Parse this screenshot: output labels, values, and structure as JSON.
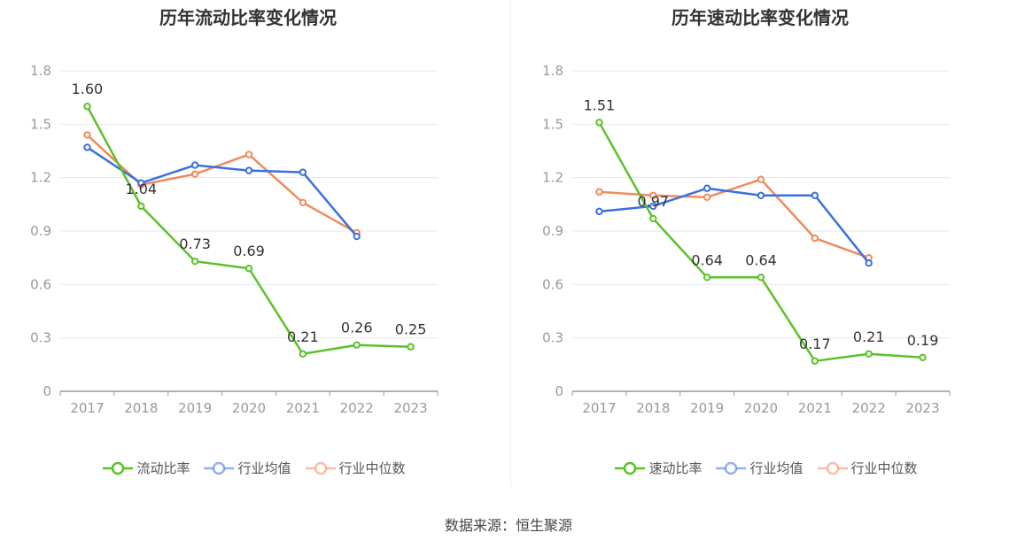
{
  "chart_data": [
    {
      "type": "line",
      "title": "历年流动比率变化情况",
      "categories": [
        "2017",
        "2018",
        "2019",
        "2020",
        "2021",
        "2022",
        "2023"
      ],
      "yticks": [
        "0",
        "0.3",
        "0.6",
        "0.9",
        "1.2",
        "1.5",
        "1.8"
      ],
      "ylim": [
        0,
        1.8
      ],
      "grid": true,
      "legend_position": "bottom",
      "series": [
        {
          "name": "流动比率",
          "color": "#5ac229",
          "labeled": true,
          "values": [
            1.6,
            1.04,
            0.73,
            0.69,
            0.21,
            0.26,
            0.25
          ],
          "labels": [
            "1.60",
            "1.04",
            "0.73",
            "0.69",
            "0.21",
            "0.26",
            "0.25"
          ]
        },
        {
          "name": "行业均值",
          "color": "#3b70e0",
          "labeled": false,
          "values": [
            1.37,
            1.17,
            1.27,
            1.24,
            1.23,
            0.87,
            null
          ]
        },
        {
          "name": "行业中位数",
          "color": "#f08a5d",
          "labeled": false,
          "values": [
            1.44,
            1.16,
            1.22,
            1.33,
            1.06,
            0.89,
            null
          ]
        }
      ]
    },
    {
      "type": "line",
      "title": "历年速动比率变化情况",
      "categories": [
        "2017",
        "2018",
        "2019",
        "2020",
        "2021",
        "2022",
        "2023"
      ],
      "yticks": [
        "0",
        "0.3",
        "0.6",
        "0.9",
        "1.2",
        "1.5",
        "1.8"
      ],
      "ylim": [
        0,
        1.8
      ],
      "grid": true,
      "legend_position": "bottom",
      "series": [
        {
          "name": "速动比率",
          "color": "#5ac229",
          "labeled": true,
          "values": [
            1.51,
            0.97,
            0.64,
            0.64,
            0.17,
            0.21,
            0.19
          ],
          "labels": [
            "1.51",
            "0.97",
            "0.64",
            "0.64",
            "0.17",
            "0.21",
            "0.19"
          ]
        },
        {
          "name": "行业均值",
          "color": "#3b70e0",
          "labeled": false,
          "values": [
            1.01,
            1.04,
            1.14,
            1.1,
            1.1,
            0.72,
            null
          ]
        },
        {
          "name": "行业中位数",
          "color": "#f08a5d",
          "labeled": false,
          "values": [
            1.12,
            1.1,
            1.09,
            1.19,
            0.86,
            0.75,
            null
          ]
        }
      ]
    }
  ],
  "source": "数据来源：恒生聚源"
}
